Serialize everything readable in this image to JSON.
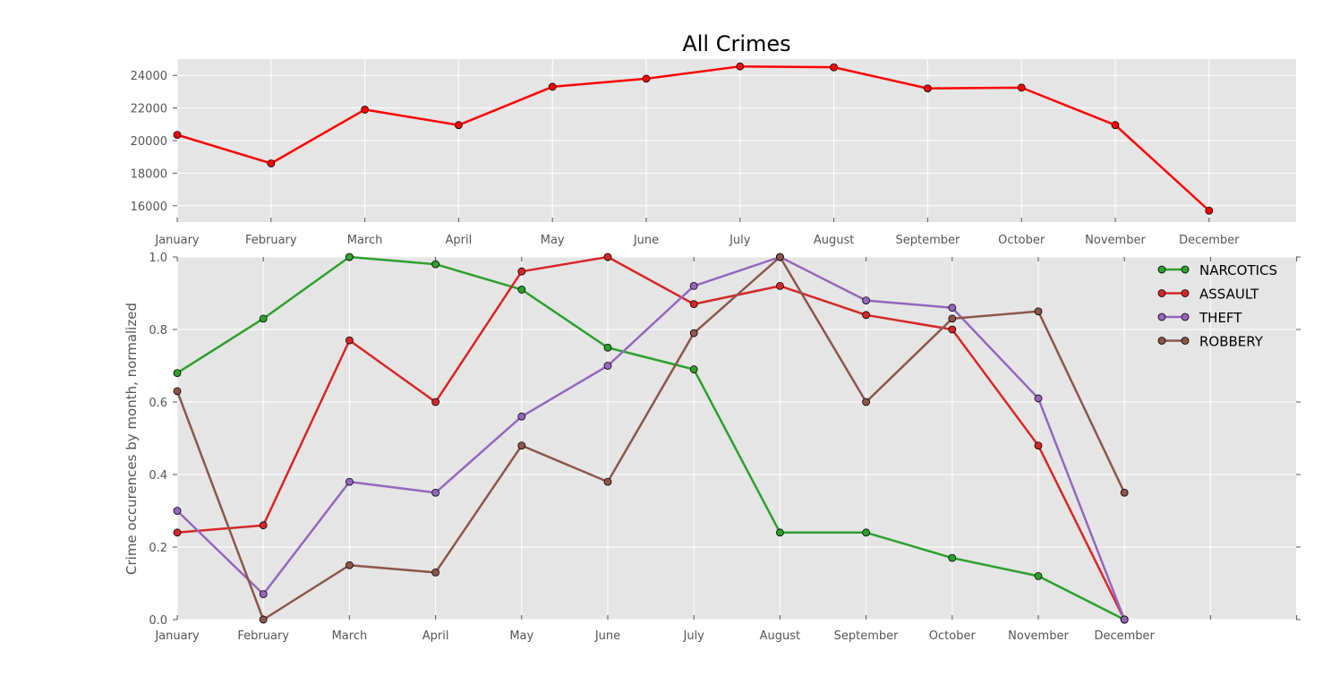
{
  "chart_data": [
    {
      "type": "line",
      "title": "All Crimes",
      "xlabel": "",
      "ylabel": "",
      "categories": [
        "January",
        "February",
        "March",
        "April",
        "May",
        "June",
        "July",
        "August",
        "September",
        "October",
        "November",
        "December"
      ],
      "ylim": [
        15000,
        25000
      ],
      "yticks": [
        16000,
        18000,
        20000,
        22000,
        24000
      ],
      "grid": true,
      "series": [
        {
          "color": "#ff0000",
          "values": [
            20350,
            18600,
            21900,
            20950,
            23300,
            23800,
            24550,
            24500,
            23200,
            23250,
            20950,
            15700
          ]
        }
      ]
    },
    {
      "type": "line",
      "title": "",
      "xlabel": "",
      "ylabel": "Crime occurences by month, normalized",
      "categories": [
        "January",
        "February",
        "March",
        "April",
        "May",
        "June",
        "July",
        "August",
        "September",
        "October",
        "November",
        "December"
      ],
      "ylim": [
        0.0,
        1.0
      ],
      "yticks": [
        "0.0",
        "0.2",
        "0.4",
        "0.6",
        "0.8",
        "1.0"
      ],
      "grid": true,
      "legend_position": "top-right",
      "series": [
        {
          "name": "NARCOTICS",
          "color": "#2ca02c",
          "values": [
            0.68,
            0.83,
            1.0,
            0.98,
            0.91,
            0.75,
            0.69,
            0.24,
            0.24,
            0.17,
            0.12,
            0.0
          ]
        },
        {
          "name": "ASSAULT",
          "color": "#d62728",
          "values": [
            0.24,
            0.26,
            0.77,
            0.6,
            0.96,
            1.0,
            0.87,
            0.92,
            0.84,
            0.8,
            0.48,
            0.0
          ]
        },
        {
          "name": "THEFT",
          "color": "#9467bd",
          "values": [
            0.3,
            0.07,
            0.38,
            0.35,
            0.56,
            0.7,
            0.92,
            1.0,
            0.88,
            0.86,
            0.61,
            0.0
          ]
        },
        {
          "name": "ROBBERY",
          "color": "#8c564b",
          "values": [
            0.63,
            0.0,
            0.15,
            0.13,
            0.48,
            0.38,
            0.79,
            1.0,
            0.6,
            0.83,
            0.85,
            0.35
          ]
        }
      ]
    }
  ]
}
